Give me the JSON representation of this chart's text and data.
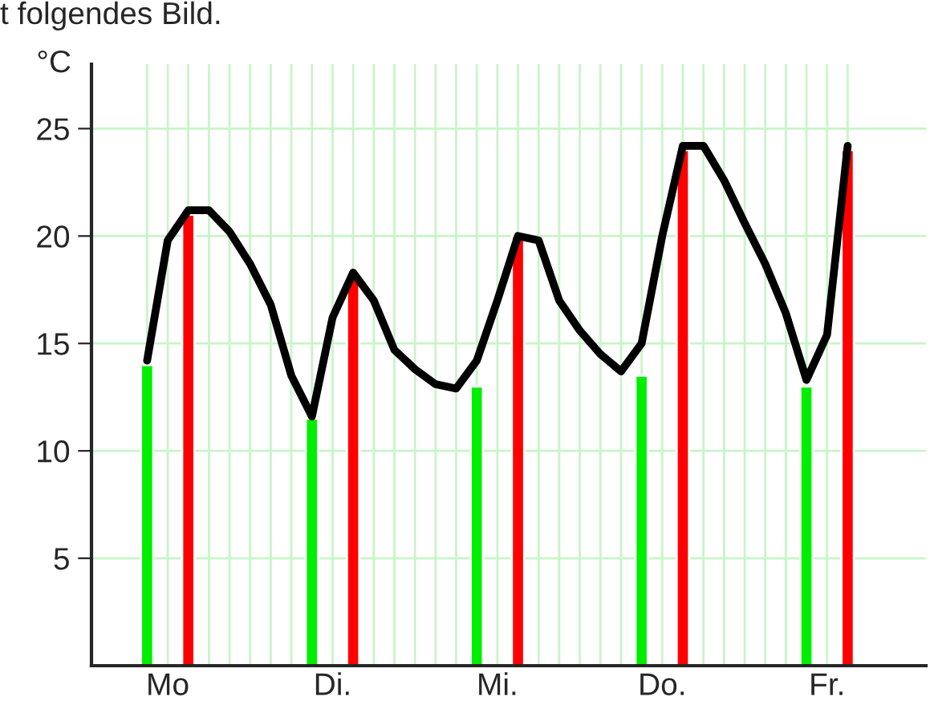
{
  "chart_data": {
    "type": "bar",
    "ylabel": "°C",
    "annotations": [
      "t folgendes Bild."
    ],
    "categories": [
      null,
      "Mo",
      null,
      null,
      null,
      null,
      null,
      null,
      null,
      "Di.",
      null,
      null,
      null,
      null,
      null,
      null,
      null,
      "Mi.",
      null,
      null,
      null,
      null,
      null,
      null,
      null,
      "Do.",
      null,
      null,
      null,
      null,
      null,
      null,
      null,
      "Fr.",
      null
    ],
    "ylim": [
      0,
      28
    ],
    "yticks": [
      5,
      10,
      15,
      20,
      25
    ],
    "grid": true,
    "legend": false,
    "series": [
      {
        "color": "#00ee00",
        "values": [
          14,
          null,
          null,
          null,
          null,
          null,
          null,
          null,
          11.5,
          null,
          null,
          null,
          null,
          null,
          null,
          null,
          13,
          null,
          null,
          null,
          null,
          null,
          null,
          null,
          13.5,
          null,
          null,
          null,
          null,
          null,
          null,
          null,
          13,
          null,
          null
        ]
      },
      {
        "color": "#ff0000",
        "values": [
          null,
          null,
          21,
          null,
          null,
          null,
          null,
          null,
          null,
          null,
          18,
          null,
          null,
          null,
          null,
          null,
          null,
          null,
          20,
          null,
          null,
          null,
          null,
          null,
          null,
          null,
          24,
          null,
          null,
          null,
          null,
          null,
          null,
          null,
          24
        ]
      },
      {
        "type": "line",
        "color": "#000000",
        "line_style": "solid",
        "marker": "none",
        "values": [
          14.2,
          19.8,
          21.2,
          21.2,
          20.2,
          18.7,
          16.8,
          13.5,
          11.6,
          16.2,
          18.3,
          17,
          14.7,
          13.8,
          13.1,
          12.9,
          14.2,
          17,
          20,
          19.8,
          17,
          15.6,
          14.5,
          13.7,
          15,
          20,
          24.2,
          24.2,
          22.6,
          20.6,
          18.7,
          16.4,
          13.3,
          15.4,
          24.2
        ]
      }
    ]
  }
}
